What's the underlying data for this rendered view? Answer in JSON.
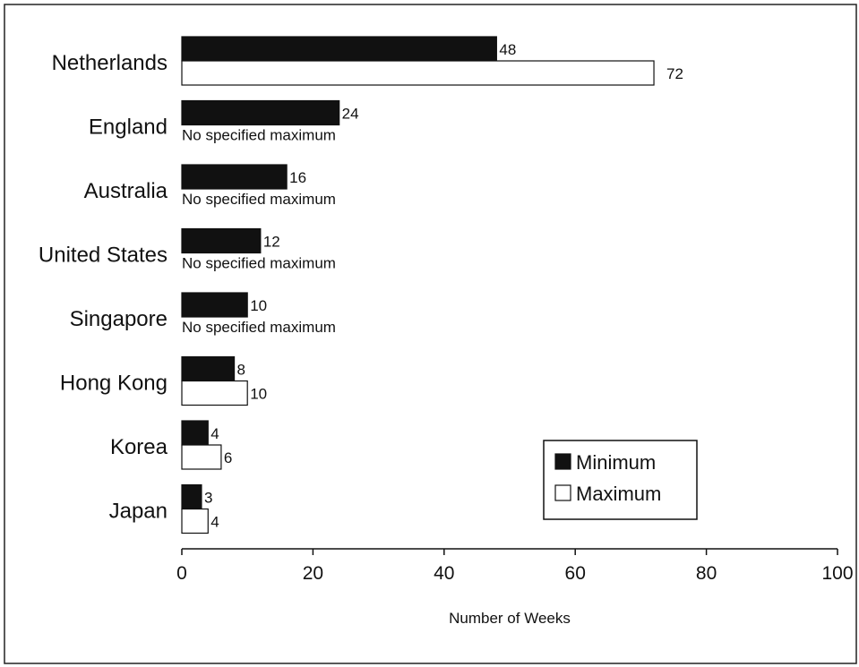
{
  "chart_data": {
    "type": "bar",
    "orientation": "horizontal",
    "title": "",
    "xlabel": "Number of Weeks",
    "ylabel": "",
    "xlim": [
      0,
      100
    ],
    "x_ticks": [
      "0",
      "20",
      "40",
      "60",
      "80",
      "100"
    ],
    "grid": false,
    "legend_position": "bottom-right",
    "categories": [
      "Netherlands",
      "England",
      "Australia",
      "United States",
      "Singapore",
      "Hong Kong",
      "Korea",
      "Japan"
    ],
    "series": [
      {
        "name": "Minimum",
        "color": "#111111",
        "values": [
          48,
          24,
          16,
          12,
          10,
          8,
          4,
          3
        ],
        "labels": [
          "48",
          "24",
          "16",
          "12",
          "10",
          "8",
          "4",
          "3"
        ]
      },
      {
        "name": "Maximum",
        "color": "#ffffff",
        "values": [
          72,
          null,
          null,
          null,
          null,
          10,
          6,
          4
        ],
        "labels": [
          "72",
          "No specified maximum",
          "No specified maximum",
          "No specified maximum",
          "No specified maximum",
          "10",
          "6",
          "4"
        ]
      }
    ]
  }
}
